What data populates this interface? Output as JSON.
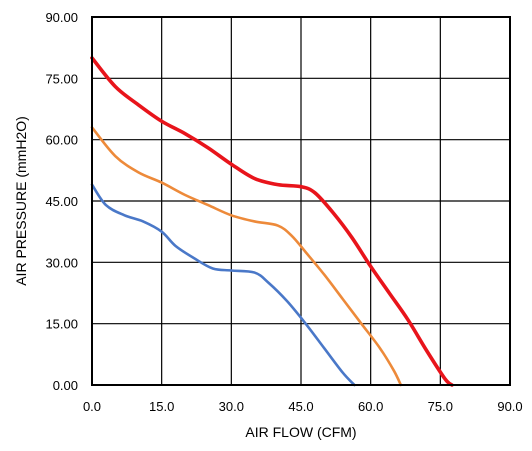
{
  "chart_data": {
    "type": "line",
    "xlabel": "AIR FLOW  (CFM)",
    "ylabel": "AIR PRESSURE  (mmH2O)",
    "xlim": [
      0,
      90
    ],
    "ylim": [
      0,
      90
    ],
    "x_ticks": [
      "0.0",
      "15.0",
      "30.0",
      "45.0",
      "60.0",
      "75.0",
      "90.0"
    ],
    "y_ticks": [
      "0.00",
      "15.00",
      "30.00",
      "45.00",
      "60.00",
      "75.00",
      "90.00"
    ],
    "grid": true,
    "legend": "none",
    "series": [
      {
        "color": "#e8141b",
        "x": [
          0,
          5,
          10,
          15,
          20,
          25,
          30,
          35,
          40,
          45,
          48,
          52,
          56,
          60,
          64,
          68,
          72,
          76,
          77.5
        ],
        "y": [
          80,
          73,
          68.5,
          64.5,
          61.5,
          58,
          54,
          50.5,
          49,
          48.5,
          47,
          42,
          36,
          29,
          22.5,
          16,
          8.5,
          1.5,
          0
        ]
      },
      {
        "color": "#ed8a3a",
        "x": [
          0,
          5,
          10,
          15,
          20,
          25,
          30,
          35,
          40,
          43,
          46,
          50,
          54,
          58,
          62,
          65,
          66.5
        ],
        "y": [
          63,
          56,
          52,
          49.5,
          46.5,
          44,
          41.5,
          40,
          39,
          36.5,
          32.5,
          27,
          21,
          15,
          9,
          3.5,
          0
        ]
      },
      {
        "color": "#4a78c8",
        "x": [
          0,
          3,
          7,
          11,
          15,
          18,
          22,
          26,
          30,
          35,
          38,
          42,
          46,
          50,
          54,
          56.5
        ],
        "y": [
          49,
          44,
          41.5,
          40,
          37.5,
          34,
          31,
          28.5,
          28,
          27.5,
          25,
          20.5,
          15,
          9,
          3,
          0
        ]
      }
    ]
  }
}
